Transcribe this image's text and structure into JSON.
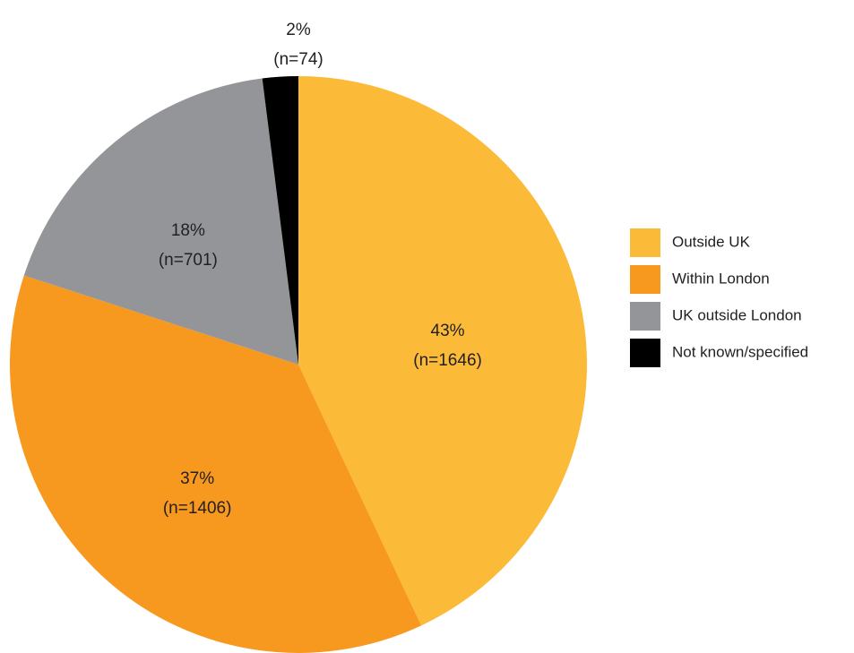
{
  "chart_data": {
    "type": "pie",
    "categories": [
      "Outside UK",
      "Within London",
      "UK outside London",
      "Not known/specified"
    ],
    "values": [
      43,
      37,
      18,
      2
    ],
    "value_labels": [
      "43%",
      "37%",
      "18%",
      "2%"
    ],
    "counts": [
      1646,
      1406,
      701,
      74
    ],
    "count_labels": [
      "(n=1646)",
      "(n=1406)",
      "(n=701)",
      "(n=74)"
    ],
    "colors": [
      "#fbbb39",
      "#f7981f",
      "#939598",
      "#000000"
    ],
    "legend": "right"
  }
}
